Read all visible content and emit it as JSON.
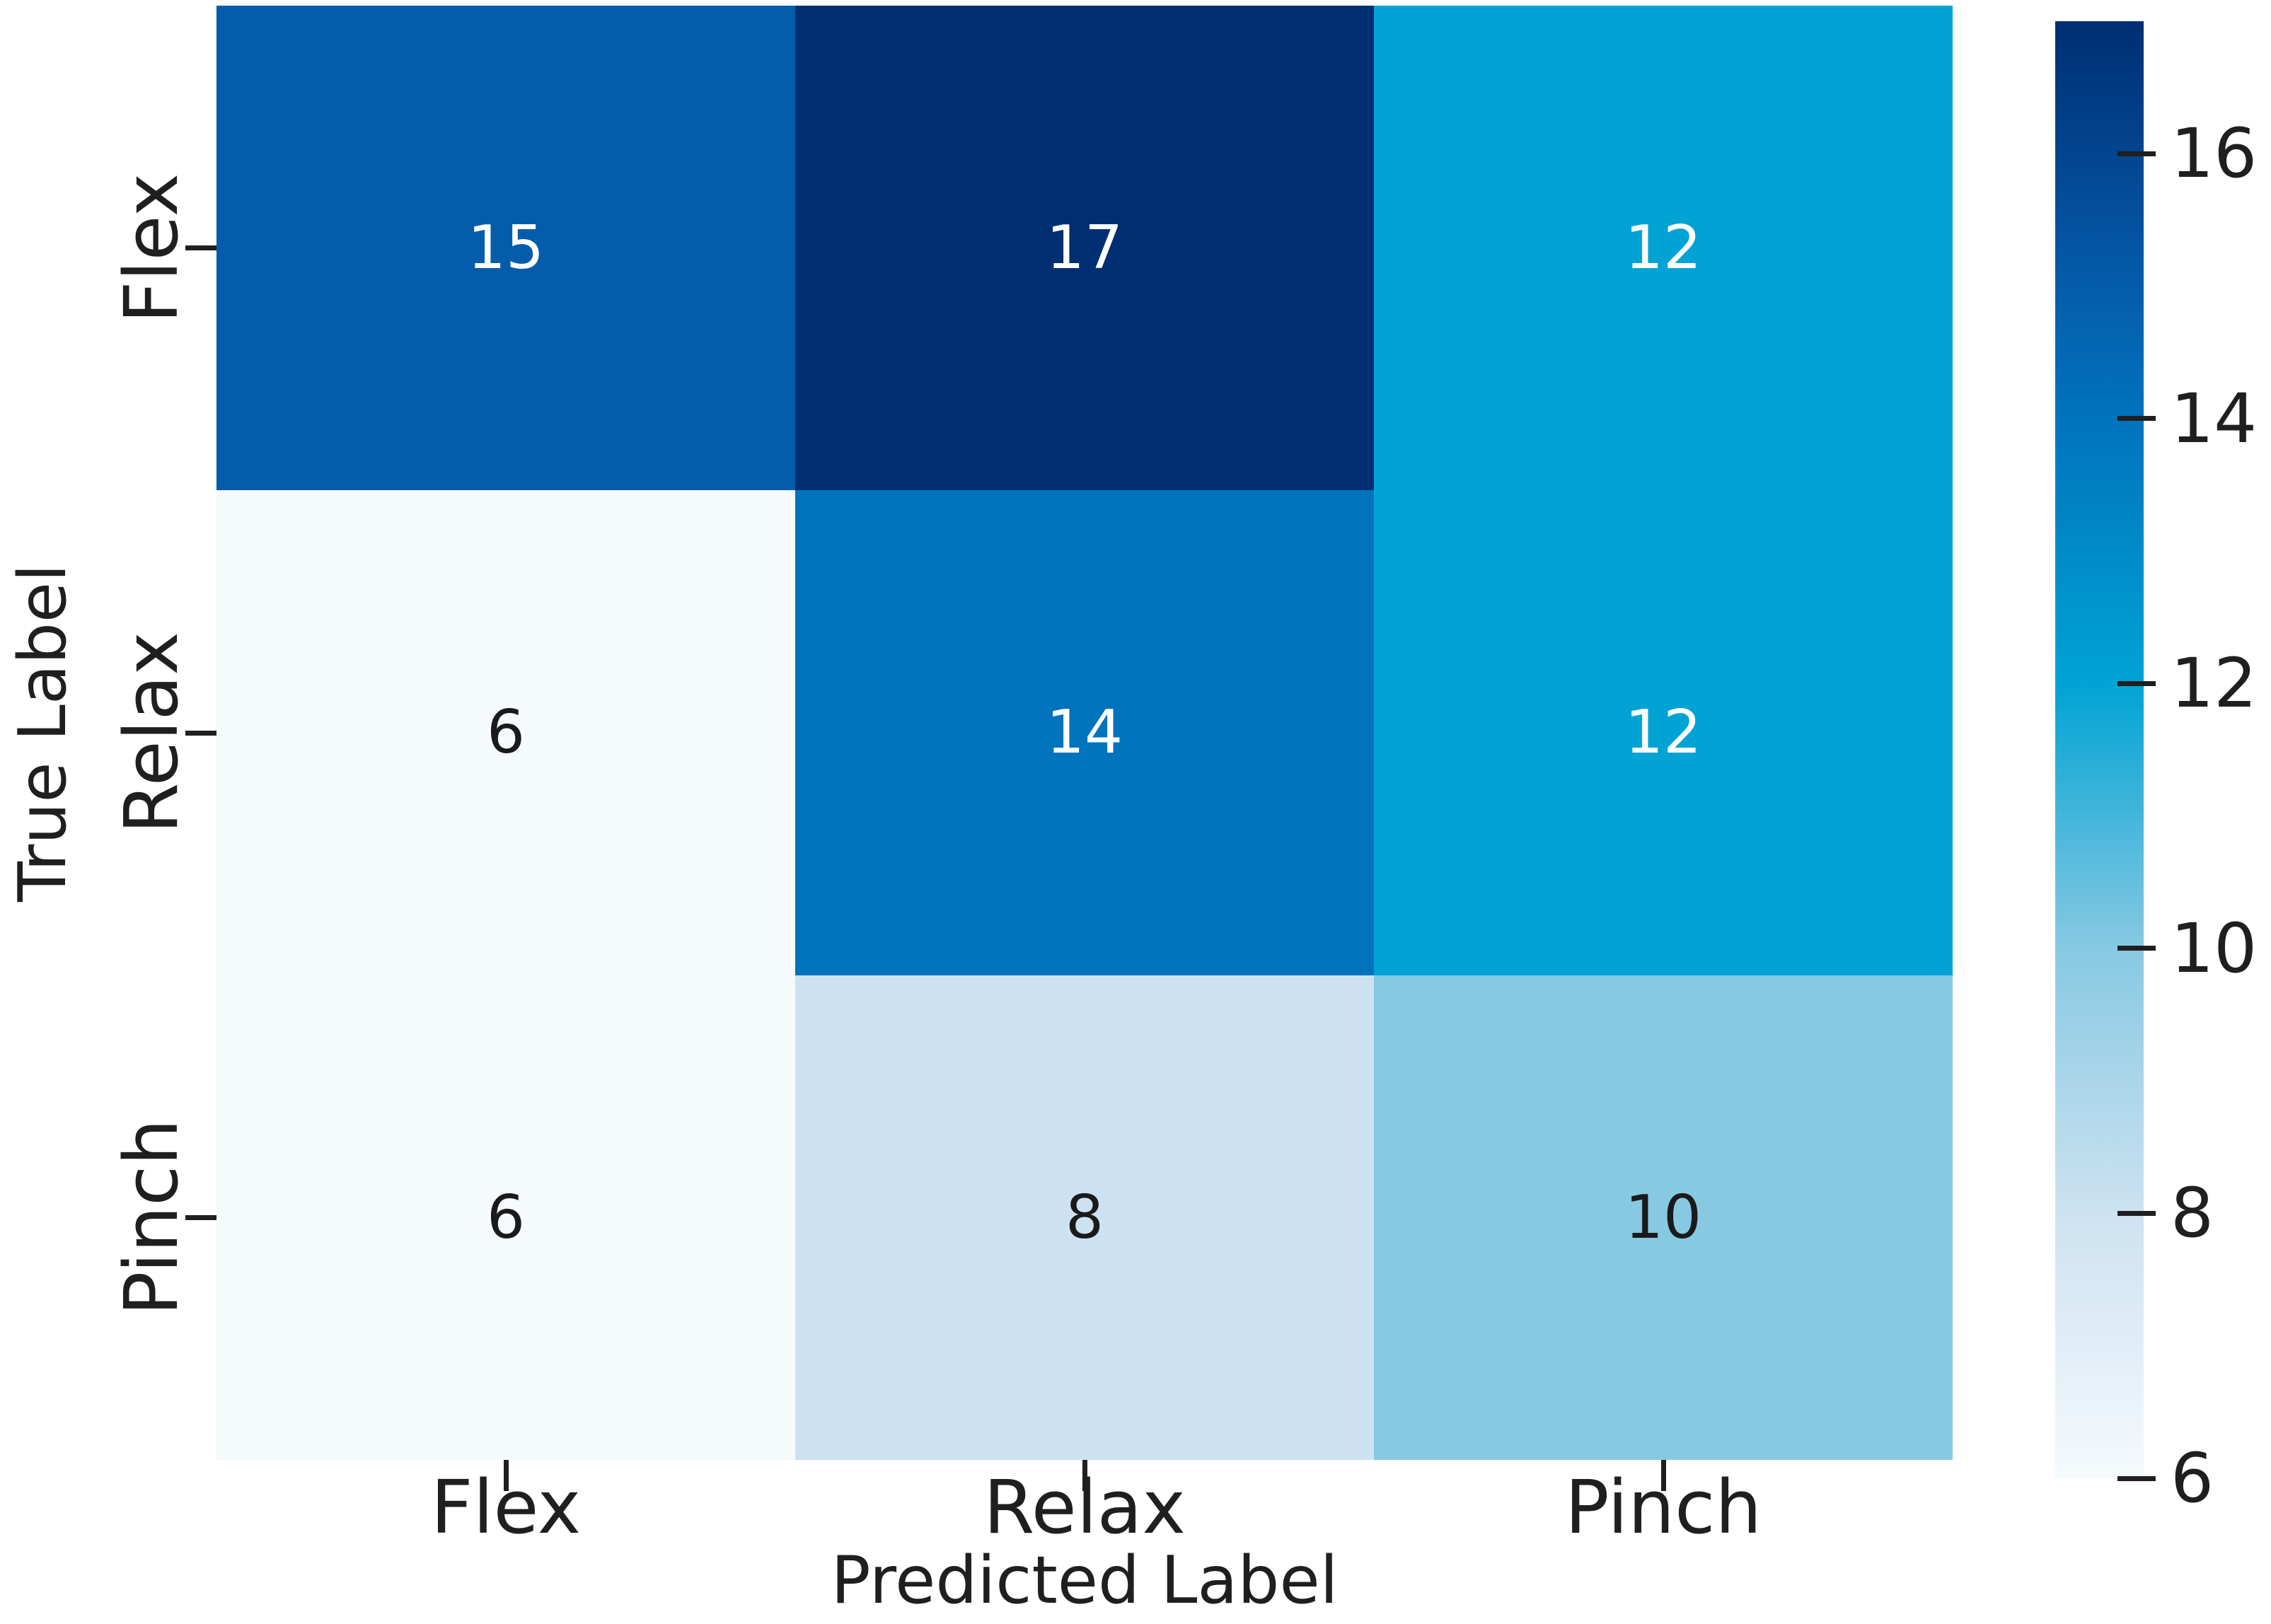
{
  "figure": {
    "background": "#ffffff"
  },
  "chart_data": {
    "type": "heatmap",
    "title": "",
    "xlabel": "Predicted Label",
    "ylabel": "True Label",
    "x_categories": [
      "Flex",
      "Relax",
      "Pinch"
    ],
    "y_categories": [
      "Flex",
      "Relax",
      "Pinch"
    ],
    "matrix": [
      [
        15,
        17,
        12
      ],
      [
        6,
        14,
        12
      ],
      [
        6,
        8,
        10
      ]
    ],
    "vmin": 6,
    "vmax": 17,
    "colormap": "Blues",
    "grid": false,
    "legend_position": "right-colorbar",
    "colorbar_ticks": [
      16,
      14,
      12,
      10,
      8,
      6
    ],
    "cell_colors": [
      [
        "#055cab",
        "#002e73",
        "#00a3d4"
      ],
      [
        "#f5fafd",
        "#0073bd",
        "#00a3d4"
      ],
      [
        "#f5fafd",
        "#cde2f1",
        "#87c9e2"
      ]
    ],
    "cell_text_colors": [
      [
        "#ffffff",
        "#ffffff",
        "#ffffff"
      ],
      [
        "#1a1a1a",
        "#ffffff",
        "#ffffff"
      ],
      [
        "#1a1a1a",
        "#1a1a1a",
        "#1a1a1a"
      ]
    ],
    "colorbar_gradient": [
      {
        "value": 17,
        "color": "#002e73"
      },
      {
        "value": 15,
        "color": "#055cab"
      },
      {
        "value": 14,
        "color": "#0073bd"
      },
      {
        "value": 12,
        "color": "#00a3d4"
      },
      {
        "value": 10,
        "color": "#87c9e2"
      },
      {
        "value": 8,
        "color": "#cde2f1"
      },
      {
        "value": 6,
        "color": "#f5fafd"
      }
    ],
    "axis_text_color": "#1f1f1f",
    "tick_color": "#1f1f1f"
  }
}
